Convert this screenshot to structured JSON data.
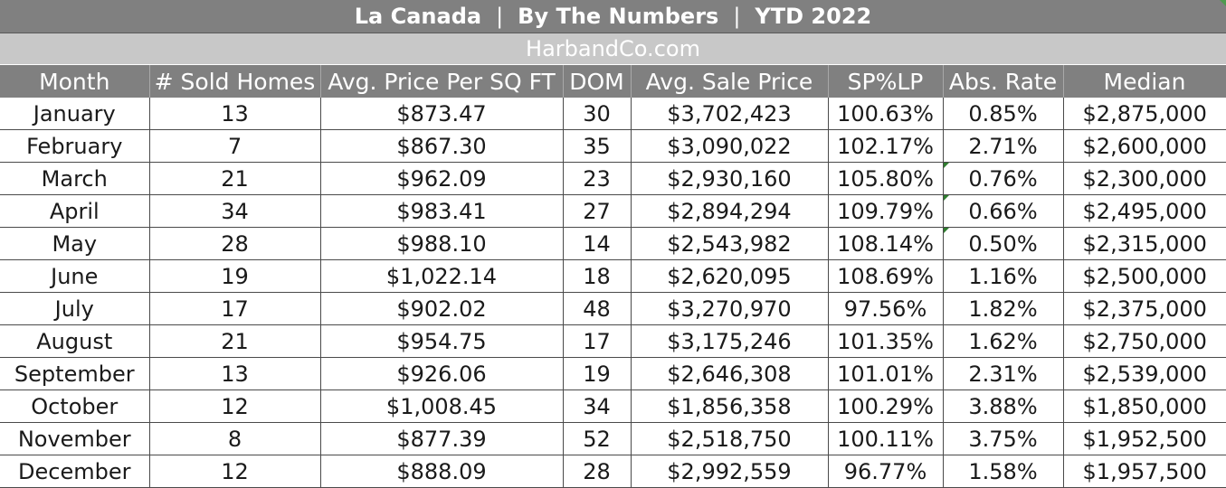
{
  "title": {
    "left": "La Canada",
    "middle": "By The Numbers",
    "right": "YTD 2022",
    "separator": "|"
  },
  "subtitle": "HarbandCo.com",
  "columns": [
    "Month",
    "# Sold Homes",
    "Avg. Price Per SQ FT",
    "DOM",
    "Avg. Sale Price",
    "SP%LP",
    "Abs. Rate",
    "Median"
  ],
  "rows": [
    [
      "January",
      "13",
      "$873.47",
      "30",
      "$3,702,423",
      "100.63%",
      "0.85%",
      "$2,875,000"
    ],
    [
      "February",
      "7",
      "$867.30",
      "35",
      "$3,090,022",
      "102.17%",
      "2.71%",
      "$2,600,000"
    ],
    [
      "March",
      "21",
      "$962.09",
      "23",
      "$2,930,160",
      "105.80%",
      "0.76%",
      "$2,300,000"
    ],
    [
      "April",
      "34",
      "$983.41",
      "27",
      "$2,894,294",
      "109.79%",
      "0.66%",
      "$2,495,000"
    ],
    [
      "May",
      "28",
      "$988.10",
      "14",
      "$2,543,982",
      "108.14%",
      "0.50%",
      "$2,315,000"
    ],
    [
      "June",
      "19",
      "$1,022.14",
      "18",
      "$2,620,095",
      "108.69%",
      "1.16%",
      "$2,500,000"
    ],
    [
      "July",
      "17",
      "$902.02",
      "48",
      "$3,270,970",
      "97.56%",
      "1.82%",
      "$2,375,000"
    ],
    [
      "August",
      "21",
      "$954.75",
      "17",
      "$3,175,246",
      "101.35%",
      "1.62%",
      "$2,750,000"
    ],
    [
      "September",
      "13",
      "$926.06",
      "19",
      "$2,646,308",
      "101.01%",
      "2.31%",
      "$2,539,000"
    ],
    [
      "October",
      "12",
      "$1,008.45",
      "34",
      "$1,856,358",
      "100.29%",
      "3.88%",
      "$1,850,000"
    ],
    [
      "November",
      "8",
      "$877.39",
      "52",
      "$2,518,750",
      "100.11%",
      "3.75%",
      "$1,952,500"
    ],
    [
      "December",
      "12",
      "$888.09",
      "28",
      "$2,992,559",
      "96.77%",
      "1.58%",
      "$1,957,500"
    ]
  ],
  "colors": {
    "header_bg": "#808080",
    "subtitle_bg": "#c8c8c8",
    "cell_indicator": "#2f7d2f"
  }
}
